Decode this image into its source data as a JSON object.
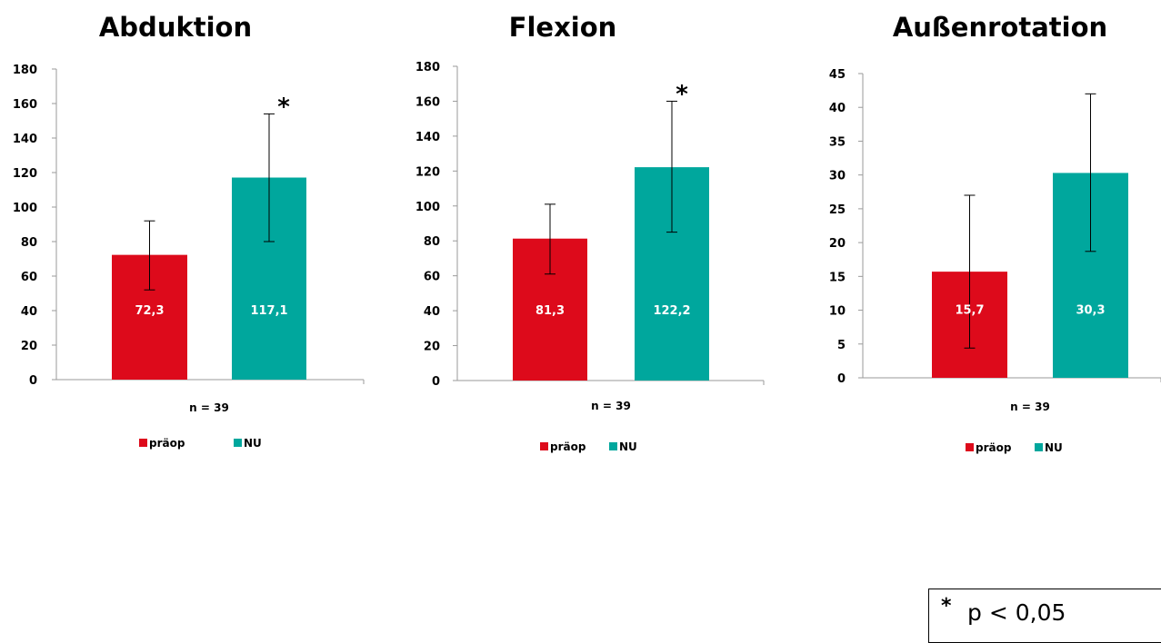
{
  "colors": {
    "praeop": "#dd0a1b",
    "nu": "#00a79d"
  },
  "chart_data": [
    {
      "type": "bar",
      "title": "Abduktion",
      "xlabel": "n = 39",
      "ylim": [
        0,
        180
      ],
      "yticks": [
        "0",
        "20",
        "40",
        "60",
        "80",
        "100",
        "120",
        "140",
        "160",
        "180"
      ],
      "yvals": [
        0,
        20,
        40,
        60,
        80,
        100,
        120,
        140,
        160,
        180
      ],
      "series": [
        {
          "name": "präop",
          "value": 72.3,
          "label": "72,3",
          "err_low": 52,
          "err_high": 92,
          "color": "#dd0a1b"
        },
        {
          "name": "NU",
          "value": 117.1,
          "label": "117,1",
          "err_low": 80,
          "err_high": 154,
          "color": "#00a79d",
          "marker": "*"
        }
      ],
      "legend": [
        "präop",
        "NU"
      ],
      "legend_position": "bottom"
    },
    {
      "type": "bar",
      "title": "Flexion",
      "xlabel": "n = 39",
      "ylim": [
        0,
        180
      ],
      "yticks": [
        "0",
        "20",
        "40",
        "60",
        "80",
        "100",
        "120",
        "140",
        "160",
        "180"
      ],
      "yvals": [
        0,
        20,
        40,
        60,
        80,
        100,
        120,
        140,
        160,
        180
      ],
      "series": [
        {
          "name": "präop",
          "value": 81.3,
          "label": "81,3",
          "err_low": 61,
          "err_high": 101,
          "color": "#dd0a1b"
        },
        {
          "name": "NU",
          "value": 122.2,
          "label": "122,2",
          "err_low": 85,
          "err_high": 160,
          "color": "#00a79d",
          "marker": "*"
        }
      ],
      "legend": [
        "präop",
        "NU"
      ],
      "legend_position": "bottom"
    },
    {
      "type": "bar",
      "title": "Außenrotation",
      "xlabel": "n = 39",
      "ylim": [
        0,
        45
      ],
      "yticks": [
        "0",
        "5",
        "10",
        "15",
        "20",
        "25",
        "30",
        "35",
        "40",
        "45"
      ],
      "yvals": [
        0,
        5,
        10,
        15,
        20,
        25,
        30,
        35,
        40,
        45
      ],
      "series": [
        {
          "name": "präop",
          "value": 15.7,
          "label": "15,7",
          "err_low": 4.4,
          "err_high": 27,
          "color": "#dd0a1b"
        },
        {
          "name": "NU",
          "value": 30.3,
          "label": "30,3",
          "err_low": 18.7,
          "err_high": 42,
          "color": "#00a79d"
        }
      ],
      "legend": [
        "präop",
        "NU"
      ],
      "legend_position": "bottom"
    }
  ],
  "footnote": {
    "star": "*",
    "text": "p < 0,05"
  }
}
